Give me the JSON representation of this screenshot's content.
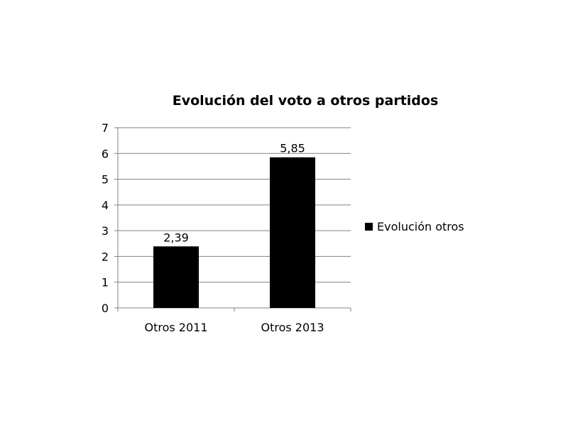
{
  "chart_data": {
    "type": "bar",
    "title": "Evolución del voto a otros partidos",
    "categories": [
      "Otros 2011",
      "Otros 2013"
    ],
    "series": [
      {
        "name": "Evolución otros",
        "values": [
          2.39,
          5.85
        ],
        "labels": [
          "2,39",
          "5,85"
        ],
        "color": "#000000"
      }
    ],
    "ylim": [
      0,
      7
    ],
    "yticks": [
      "0",
      "1",
      "2",
      "3",
      "4",
      "5",
      "6",
      "7"
    ],
    "grid": true,
    "legend_position": "right",
    "gridline_color": "#808080"
  }
}
